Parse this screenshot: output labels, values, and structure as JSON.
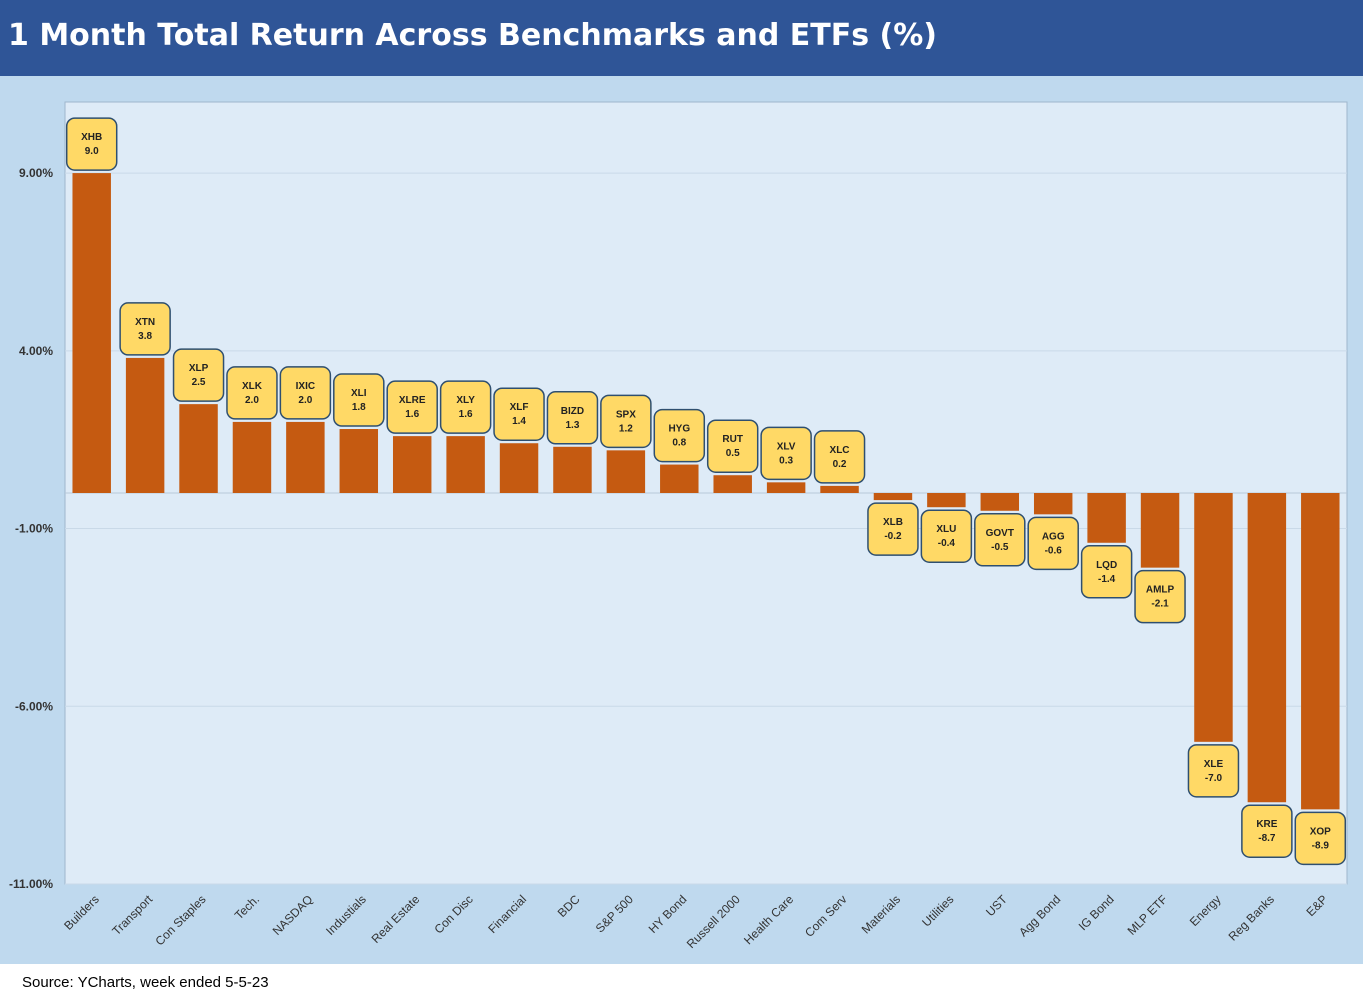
{
  "title": "1 Month Total Return Across Benchmarks and ETFs (%)",
  "source": "Source: YCharts, week ended 5-5-23",
  "chart_data": {
    "type": "bar",
    "categories": [
      "Builders",
      "Transport",
      "Con Staples",
      "Tech.",
      "NASDAQ",
      "Industials",
      "Real Estate",
      "Con Disc",
      "Financial",
      "BDC",
      "S&P 500",
      "HY Bond",
      "Russell 2000",
      "Health Care",
      "Com Serv",
      "Materials",
      "Utilities",
      "UST",
      "Agg Bond",
      "IG Bond",
      "MLP ETF",
      "Energy",
      "Reg Banks",
      "E&P"
    ],
    "tickers": [
      "XHB",
      "XTN",
      "XLP",
      "XLK",
      "IXIC",
      "XLI",
      "XLRE",
      "XLY",
      "XLF",
      "BIZD",
      "SPX",
      "HYG",
      "RUT",
      "XLV",
      "XLC",
      "XLB",
      "XLU",
      "GOVT",
      "AGG",
      "LQD",
      "AMLP",
      "XLE",
      "KRE",
      "XOP"
    ],
    "value_labels": [
      "9.0",
      "3.8",
      "2.5",
      "2.0",
      "2.0",
      "1.8",
      "1.6",
      "1.6",
      "1.4",
      "1.3",
      "1.2",
      "0.8",
      "0.5",
      "0.3",
      "0.2",
      "-0.2",
      "-0.4",
      "-0.5",
      "-0.6",
      "-1.4",
      "-2.1",
      "-7.0",
      "-8.7",
      "-8.9"
    ],
    "values": [
      9.0,
      3.8,
      2.5,
      2.0,
      2.0,
      1.8,
      1.6,
      1.6,
      1.4,
      1.3,
      1.2,
      0.8,
      0.5,
      0.3,
      0.2,
      -0.2,
      -0.4,
      -0.5,
      -0.6,
      -1.4,
      -2.1,
      -7.0,
      -8.7,
      -8.9
    ],
    "ylim": [
      -11,
      11
    ],
    "y_ticks": [
      9,
      4,
      -1,
      -6,
      -11
    ],
    "y_tick_labels": [
      "9.00%",
      "4.00%",
      "-1.00%",
      "-6.00%",
      "-11.00%"
    ],
    "grid": true,
    "colors": {
      "bar": "#c55a11",
      "label_fill": "#ffd966",
      "label_border": "#2f4f6f",
      "plot_bg": "#deebf7",
      "gridline": "#c9d9e8"
    }
  }
}
